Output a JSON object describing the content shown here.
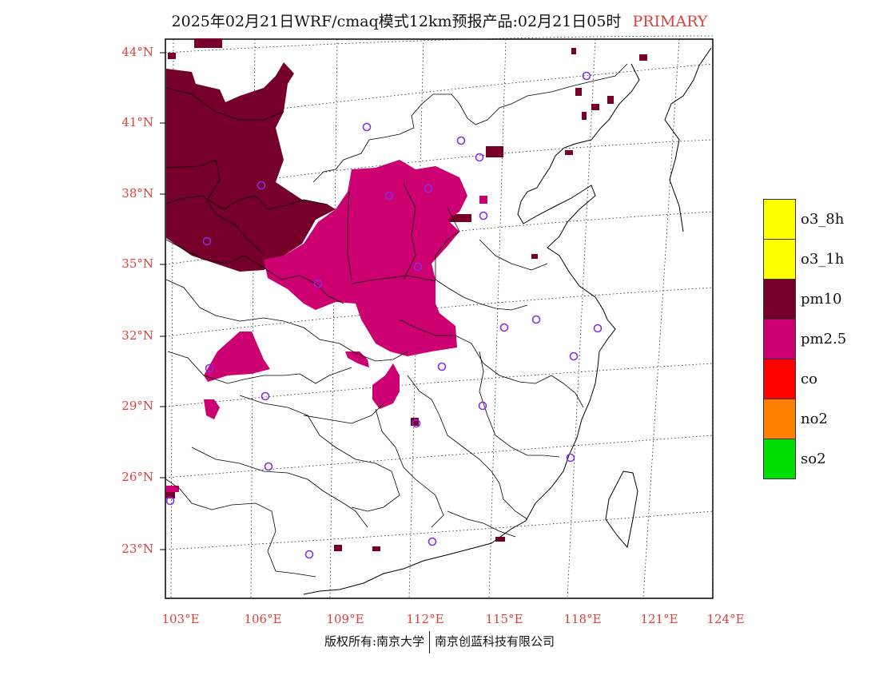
{
  "title": {
    "main": "2025年02月21日WRF/cmaq模式12km预报产品:02月21日05时",
    "tag": "PRIMARY"
  },
  "map": {
    "lat_labels": [
      "44°N",
      "41°N",
      "38°N",
      "35°N",
      "32°N",
      "29°N",
      "26°N",
      "23°N"
    ],
    "lon_labels": [
      "103°E",
      "106°E",
      "109°E",
      "112°E",
      "115°E",
      "118°E",
      "121°E",
      "124°E"
    ]
  },
  "legend": [
    {
      "label": "o3_8h",
      "color": "#ffff00"
    },
    {
      "label": "o3_1h",
      "color": "#ffff00"
    },
    {
      "label": "pm10",
      "color": "#76002a"
    },
    {
      "label": "pm2.5",
      "color": "#cc0070"
    },
    {
      "label": "co",
      "color": "#ff0000"
    },
    {
      "label": "no2",
      "color": "#ff7f00"
    },
    {
      "label": "so2",
      "color": "#00dd00"
    }
  ],
  "credits": {
    "left": "版权所有:南京大学",
    "right": "南京创蓝科技有限公司"
  }
}
